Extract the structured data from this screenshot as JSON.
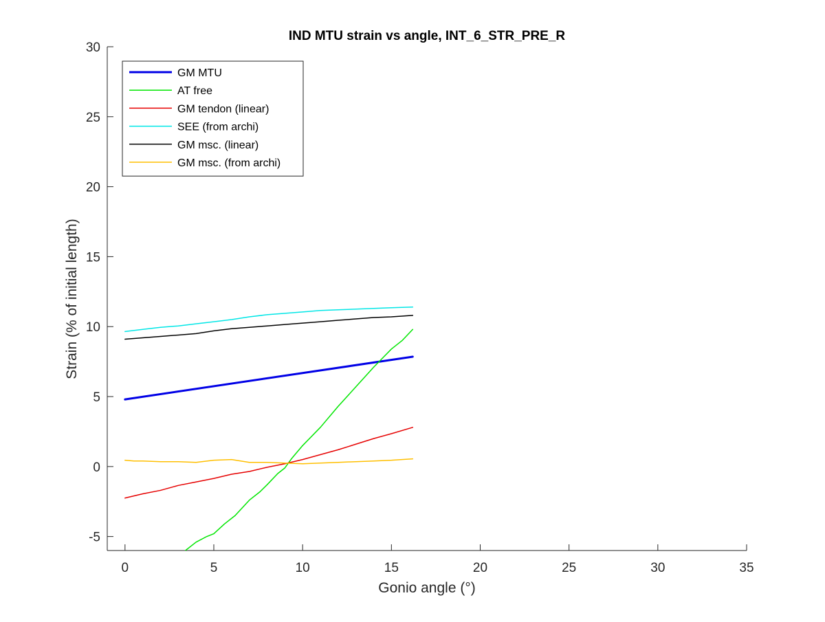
{
  "chart_data": {
    "type": "line",
    "title": "IND MTU strain vs angle, INT_6_STR_PRE_R",
    "xlabel": "Gonio angle (°)",
    "ylabel": "Strain (% of initial length)",
    "xlim": [
      -1,
      35
    ],
    "ylim": [
      -6,
      30
    ],
    "xticks": [
      0,
      5,
      10,
      15,
      20,
      25,
      30,
      35
    ],
    "yticks": [
      -5,
      0,
      5,
      10,
      15,
      20,
      25,
      30
    ],
    "grid": false,
    "box": false,
    "legend_position": "top-left",
    "series": [
      {
        "name": "GM MTU",
        "color": "#0000E6",
        "line_width": 3,
        "x": [
          0,
          16.2
        ],
        "y": [
          4.8,
          7.85
        ]
      },
      {
        "name": "AT free",
        "color": "#00E600",
        "line_width": 1.5,
        "x": [
          3.4,
          4.0,
          4.6,
          5.0,
          5.6,
          6.2,
          7.0,
          7.6,
          8.0,
          8.6,
          9.0,
          9.4,
          10.0,
          11.0,
          12.0,
          13.0,
          14.0,
          15.0,
          15.6,
          16.2
        ],
        "y": [
          -6.0,
          -5.4,
          -5.0,
          -4.8,
          -4.1,
          -3.5,
          -2.4,
          -1.8,
          -1.3,
          -0.5,
          -0.1,
          0.6,
          1.5,
          2.8,
          4.3,
          5.7,
          7.1,
          8.4,
          9.0,
          9.8
        ]
      },
      {
        "name": "GM tendon (linear)",
        "color": "#E60000",
        "line_width": 1.5,
        "x": [
          0,
          1,
          2,
          3,
          4,
          5,
          6,
          7,
          8,
          9,
          10,
          11,
          12,
          13,
          14,
          15,
          16.2
        ],
        "y": [
          -2.25,
          -1.95,
          -1.7,
          -1.35,
          -1.1,
          -0.85,
          -0.55,
          -0.35,
          -0.05,
          0.2,
          0.5,
          0.85,
          1.2,
          1.6,
          2.0,
          2.35,
          2.8
        ]
      },
      {
        "name": "SEE (from archi)",
        "color": "#00E6E6",
        "line_width": 1.5,
        "x": [
          0,
          1,
          2,
          3,
          4,
          5,
          6,
          7,
          8,
          9,
          10,
          11,
          12,
          13,
          14,
          15,
          16.2
        ],
        "y": [
          9.65,
          9.8,
          9.95,
          10.05,
          10.2,
          10.35,
          10.5,
          10.7,
          10.85,
          10.95,
          11.05,
          11.15,
          11.2,
          11.25,
          11.3,
          11.35,
          11.4
        ]
      },
      {
        "name": "GM msc. (linear)",
        "color": "#000000",
        "line_width": 1.5,
        "x": [
          0,
          1,
          2,
          3,
          4,
          5,
          6,
          7,
          8,
          9,
          10,
          11,
          12,
          13,
          14,
          15,
          16.2
        ],
        "y": [
          9.1,
          9.2,
          9.3,
          9.4,
          9.5,
          9.7,
          9.85,
          9.95,
          10.05,
          10.15,
          10.25,
          10.35,
          10.45,
          10.55,
          10.65,
          10.7,
          10.8
        ]
      },
      {
        "name": "GM msc. (from archi)",
        "color": "#FFBF00",
        "line_width": 1.5,
        "x": [
          0,
          0.5,
          1,
          2,
          3,
          4,
          5,
          6,
          7,
          8,
          9,
          10,
          11,
          12,
          13,
          14,
          15,
          16.2
        ],
        "y": [
          0.45,
          0.4,
          0.4,
          0.35,
          0.35,
          0.3,
          0.45,
          0.5,
          0.3,
          0.3,
          0.25,
          0.2,
          0.25,
          0.3,
          0.35,
          0.4,
          0.45,
          0.55
        ]
      }
    ]
  }
}
